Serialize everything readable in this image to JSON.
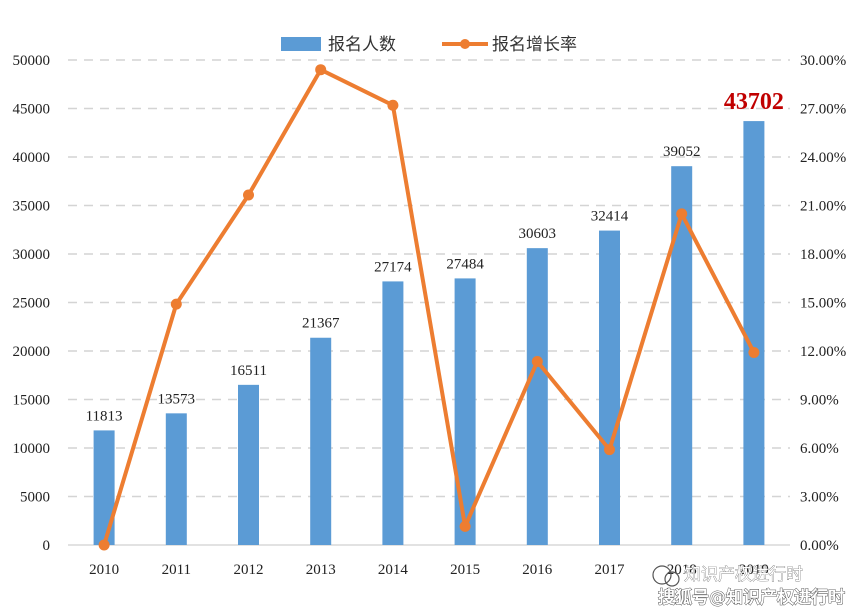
{
  "chart_data": {
    "type": "bar",
    "categories": [
      "2010",
      "2011",
      "2012",
      "2013",
      "2014",
      "2015",
      "2016",
      "2017",
      "2018",
      "2019"
    ],
    "series": [
      {
        "name": "报名人数",
        "type": "bar",
        "axis": "left",
        "color": "#5b9bd5",
        "values": [
          11813,
          13573,
          16511,
          21367,
          27174,
          27484,
          30603,
          32414,
          39052,
          43702
        ],
        "labels": [
          "11813",
          "13573",
          "16511",
          "21367",
          "27174",
          "27484",
          "30603",
          "32414",
          "39052",
          "43702"
        ]
      },
      {
        "name": "报名增长率",
        "type": "line",
        "axis": "right",
        "color": "#ed7d31",
        "values": [
          0.0,
          14.9,
          21.65,
          29.4,
          27.2,
          1.15,
          11.35,
          5.9,
          20.48,
          11.91
        ]
      }
    ],
    "highlight_label_index": 9,
    "highlight_color": "#c00000",
    "ylim": [
      0,
      50000
    ],
    "y_ticks": [
      "0",
      "5000",
      "10000",
      "15000",
      "20000",
      "25000",
      "30000",
      "35000",
      "40000",
      "45000",
      "50000"
    ],
    "y2lim": [
      0,
      30
    ],
    "y2_ticks": [
      "0.00%",
      "3.00%",
      "6.00%",
      "9.00%",
      "12.00%",
      "15.00%",
      "18.00%",
      "21.00%",
      "24.00%",
      "27.00%",
      "30.00%"
    ],
    "grid": "horizontal dashed",
    "legend_position": "top-center"
  },
  "watermark": {
    "line1": "知识产权进行时",
    "line2": "搜狐号@知识产权进行时"
  }
}
